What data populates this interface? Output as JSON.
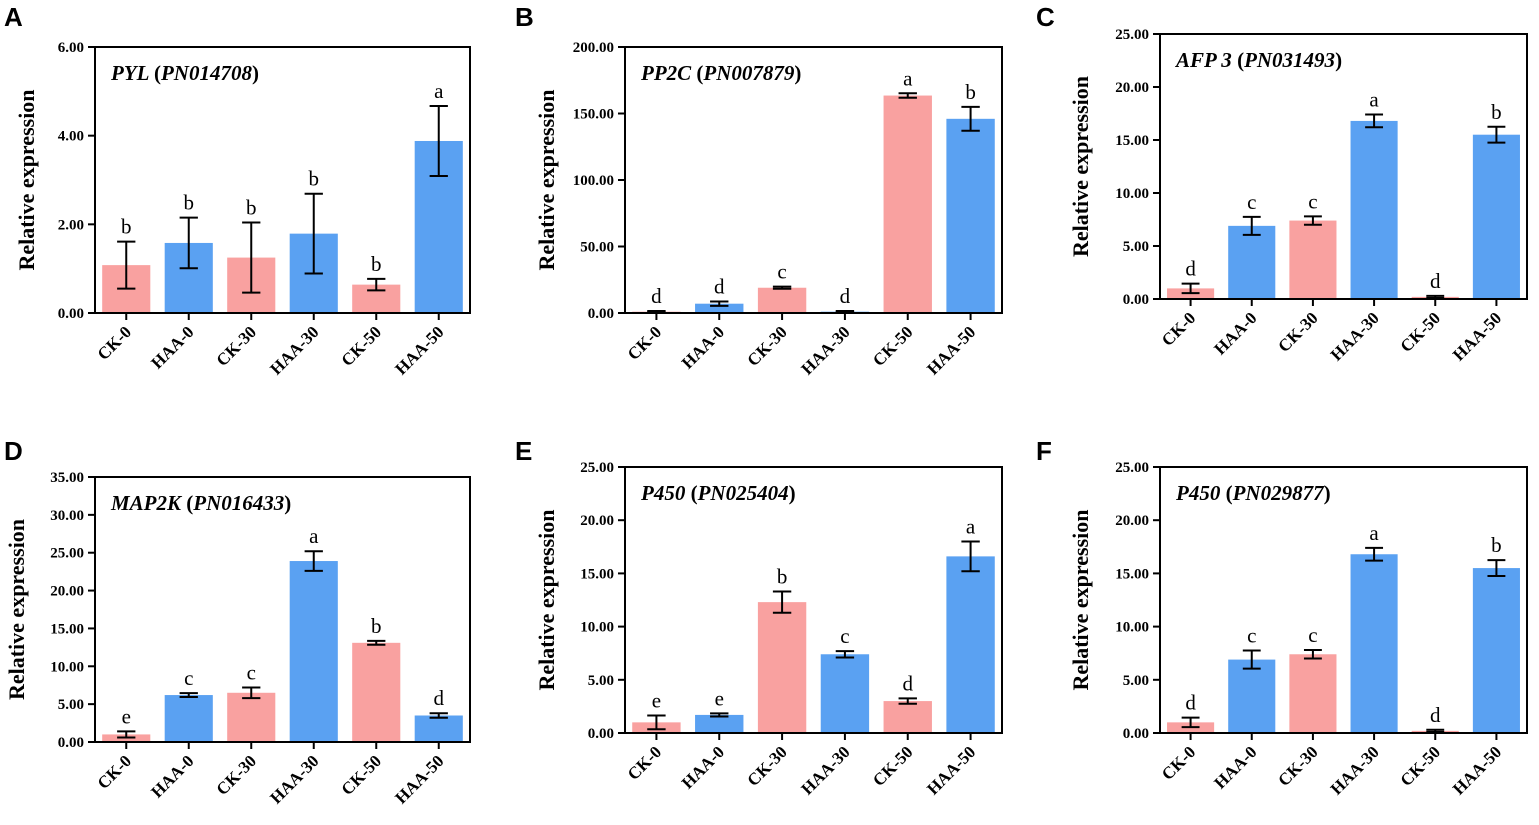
{
  "colors": {
    "ck": "#F9A1A0",
    "haa": "#5AA1F2",
    "axis": "#000000"
  },
  "chart_data": [
    {
      "type": "bar",
      "panel": "A",
      "gene_name": "PYL",
      "gene_id": "PN014708",
      "ylabel": "Relative expression",
      "ylim": [
        0,
        6
      ],
      "yticks": [
        0,
        2,
        4,
        6
      ],
      "ytick_labels": [
        "0.00",
        "2.00",
        "4.00",
        "6.00"
      ],
      "categories": [
        "CK-0",
        "HAA-0",
        "CK-30",
        "HAA-30",
        "CK-50",
        "HAA-50"
      ],
      "values": [
        1.08,
        1.58,
        1.25,
        1.79,
        0.64,
        3.88
      ],
      "errors": [
        0.53,
        0.57,
        0.79,
        0.9,
        0.13,
        0.79
      ],
      "letters": [
        "b",
        "b",
        "b",
        "b",
        "b",
        "a"
      ],
      "groups": [
        "ck",
        "haa",
        "ck",
        "haa",
        "ck",
        "haa"
      ]
    },
    {
      "type": "bar",
      "panel": "B",
      "gene_name": "PP2C",
      "gene_id": "PN007879",
      "ylabel": "Relative expression",
      "ylim": [
        0,
        200
      ],
      "yticks": [
        0,
        50,
        100,
        150,
        200
      ],
      "ytick_labels": [
        "0.00",
        "50.00",
        "100.00",
        "150.00",
        "200.00"
      ],
      "categories": [
        "CK-0",
        "HAA-0",
        "CK-30",
        "HAA-30",
        "CK-50",
        "HAA-50"
      ],
      "values": [
        1.0,
        7.0,
        19.0,
        1.0,
        163.5,
        146.0
      ],
      "errors": [
        0.5,
        1.6,
        0.8,
        0.5,
        1.7,
        9.0
      ],
      "letters": [
        "d",
        "d",
        "c",
        "d",
        "a",
        "b"
      ],
      "groups": [
        "ck",
        "haa",
        "ck",
        "haa",
        "ck",
        "haa"
      ]
    },
    {
      "type": "bar",
      "panel": "C",
      "gene_name": "AFP 3",
      "gene_id": "PN031493",
      "ylabel": "Relative expression",
      "ylim": [
        0,
        25
      ],
      "yticks": [
        0,
        5,
        10,
        15,
        20,
        25
      ],
      "ytick_labels": [
        "0.00",
        "5.00",
        "10.00",
        "15.00",
        "20.00",
        "25.00"
      ],
      "categories": [
        "CK-0",
        "HAA-0",
        "CK-30",
        "HAA-30",
        "CK-50",
        "HAA-50"
      ],
      "values": [
        1.0,
        6.9,
        7.4,
        16.8,
        0.2,
        15.5
      ],
      "errors": [
        0.45,
        0.85,
        0.4,
        0.6,
        0.1,
        0.75
      ],
      "letters": [
        "d",
        "c",
        "c",
        "a",
        "d",
        "b"
      ],
      "groups": [
        "ck",
        "haa",
        "ck",
        "haa",
        "ck",
        "haa"
      ]
    },
    {
      "type": "bar",
      "panel": "D",
      "gene_name": "MAP2K",
      "gene_id": "PN016433",
      "ylabel": "Relative expression",
      "ylim": [
        0,
        35
      ],
      "yticks": [
        0,
        5,
        10,
        15,
        20,
        25,
        30,
        35
      ],
      "ytick_labels": [
        "0.00",
        "5.00",
        "10.00",
        "15.00",
        "20.00",
        "25.00",
        "30.00",
        "35.00"
      ],
      "categories": [
        "CK-0",
        "HAA-0",
        "CK-30",
        "HAA-30",
        "CK-50",
        "HAA-50"
      ],
      "values": [
        1.0,
        6.2,
        6.5,
        23.9,
        13.1,
        3.5
      ],
      "errors": [
        0.4,
        0.25,
        0.7,
        1.3,
        0.25,
        0.3
      ],
      "letters": [
        "e",
        "c",
        "c",
        "a",
        "b",
        "d"
      ],
      "groups": [
        "ck",
        "haa",
        "ck",
        "haa",
        "ck",
        "haa"
      ]
    },
    {
      "type": "bar",
      "panel": "E",
      "gene_name": "P450",
      "gene_id": "PN025404",
      "ylabel": "Relative expression",
      "ylim": [
        0,
        25
      ],
      "yticks": [
        0,
        5,
        10,
        15,
        20,
        25
      ],
      "ytick_labels": [
        "0.00",
        "5.00",
        "10.00",
        "15.00",
        "20.00",
        "25.00"
      ],
      "categories": [
        "CK-0",
        "HAA-0",
        "CK-30",
        "HAA-30",
        "CK-50",
        "HAA-50"
      ],
      "values": [
        1.0,
        1.7,
        12.3,
        7.4,
        3.0,
        16.6
      ],
      "errors": [
        0.65,
        0.15,
        1.0,
        0.3,
        0.25,
        1.4
      ],
      "letters": [
        "e",
        "e",
        "b",
        "c",
        "d",
        "a"
      ],
      "groups": [
        "ck",
        "haa",
        "ck",
        "haa",
        "ck",
        "haa"
      ]
    },
    {
      "type": "bar",
      "panel": "F",
      "gene_name": "P450",
      "gene_id": "PN029877",
      "ylabel": "Relative expression",
      "ylim": [
        0,
        25
      ],
      "yticks": [
        0,
        5,
        10,
        15,
        20,
        25
      ],
      "ytick_labels": [
        "0.00",
        "5.00",
        "10.00",
        "15.00",
        "20.00",
        "25.00"
      ],
      "categories": [
        "CK-0",
        "HAA-0",
        "CK-30",
        "HAA-30",
        "CK-50",
        "HAA-50"
      ],
      "values": [
        1.0,
        6.9,
        7.4,
        16.8,
        0.2,
        15.5
      ],
      "errors": [
        0.45,
        0.85,
        0.4,
        0.6,
        0.1,
        0.75
      ],
      "letters": [
        "d",
        "c",
        "c",
        "a",
        "d",
        "b"
      ],
      "groups": [
        "ck",
        "haa",
        "ck",
        "haa",
        "ck",
        "haa"
      ]
    }
  ]
}
